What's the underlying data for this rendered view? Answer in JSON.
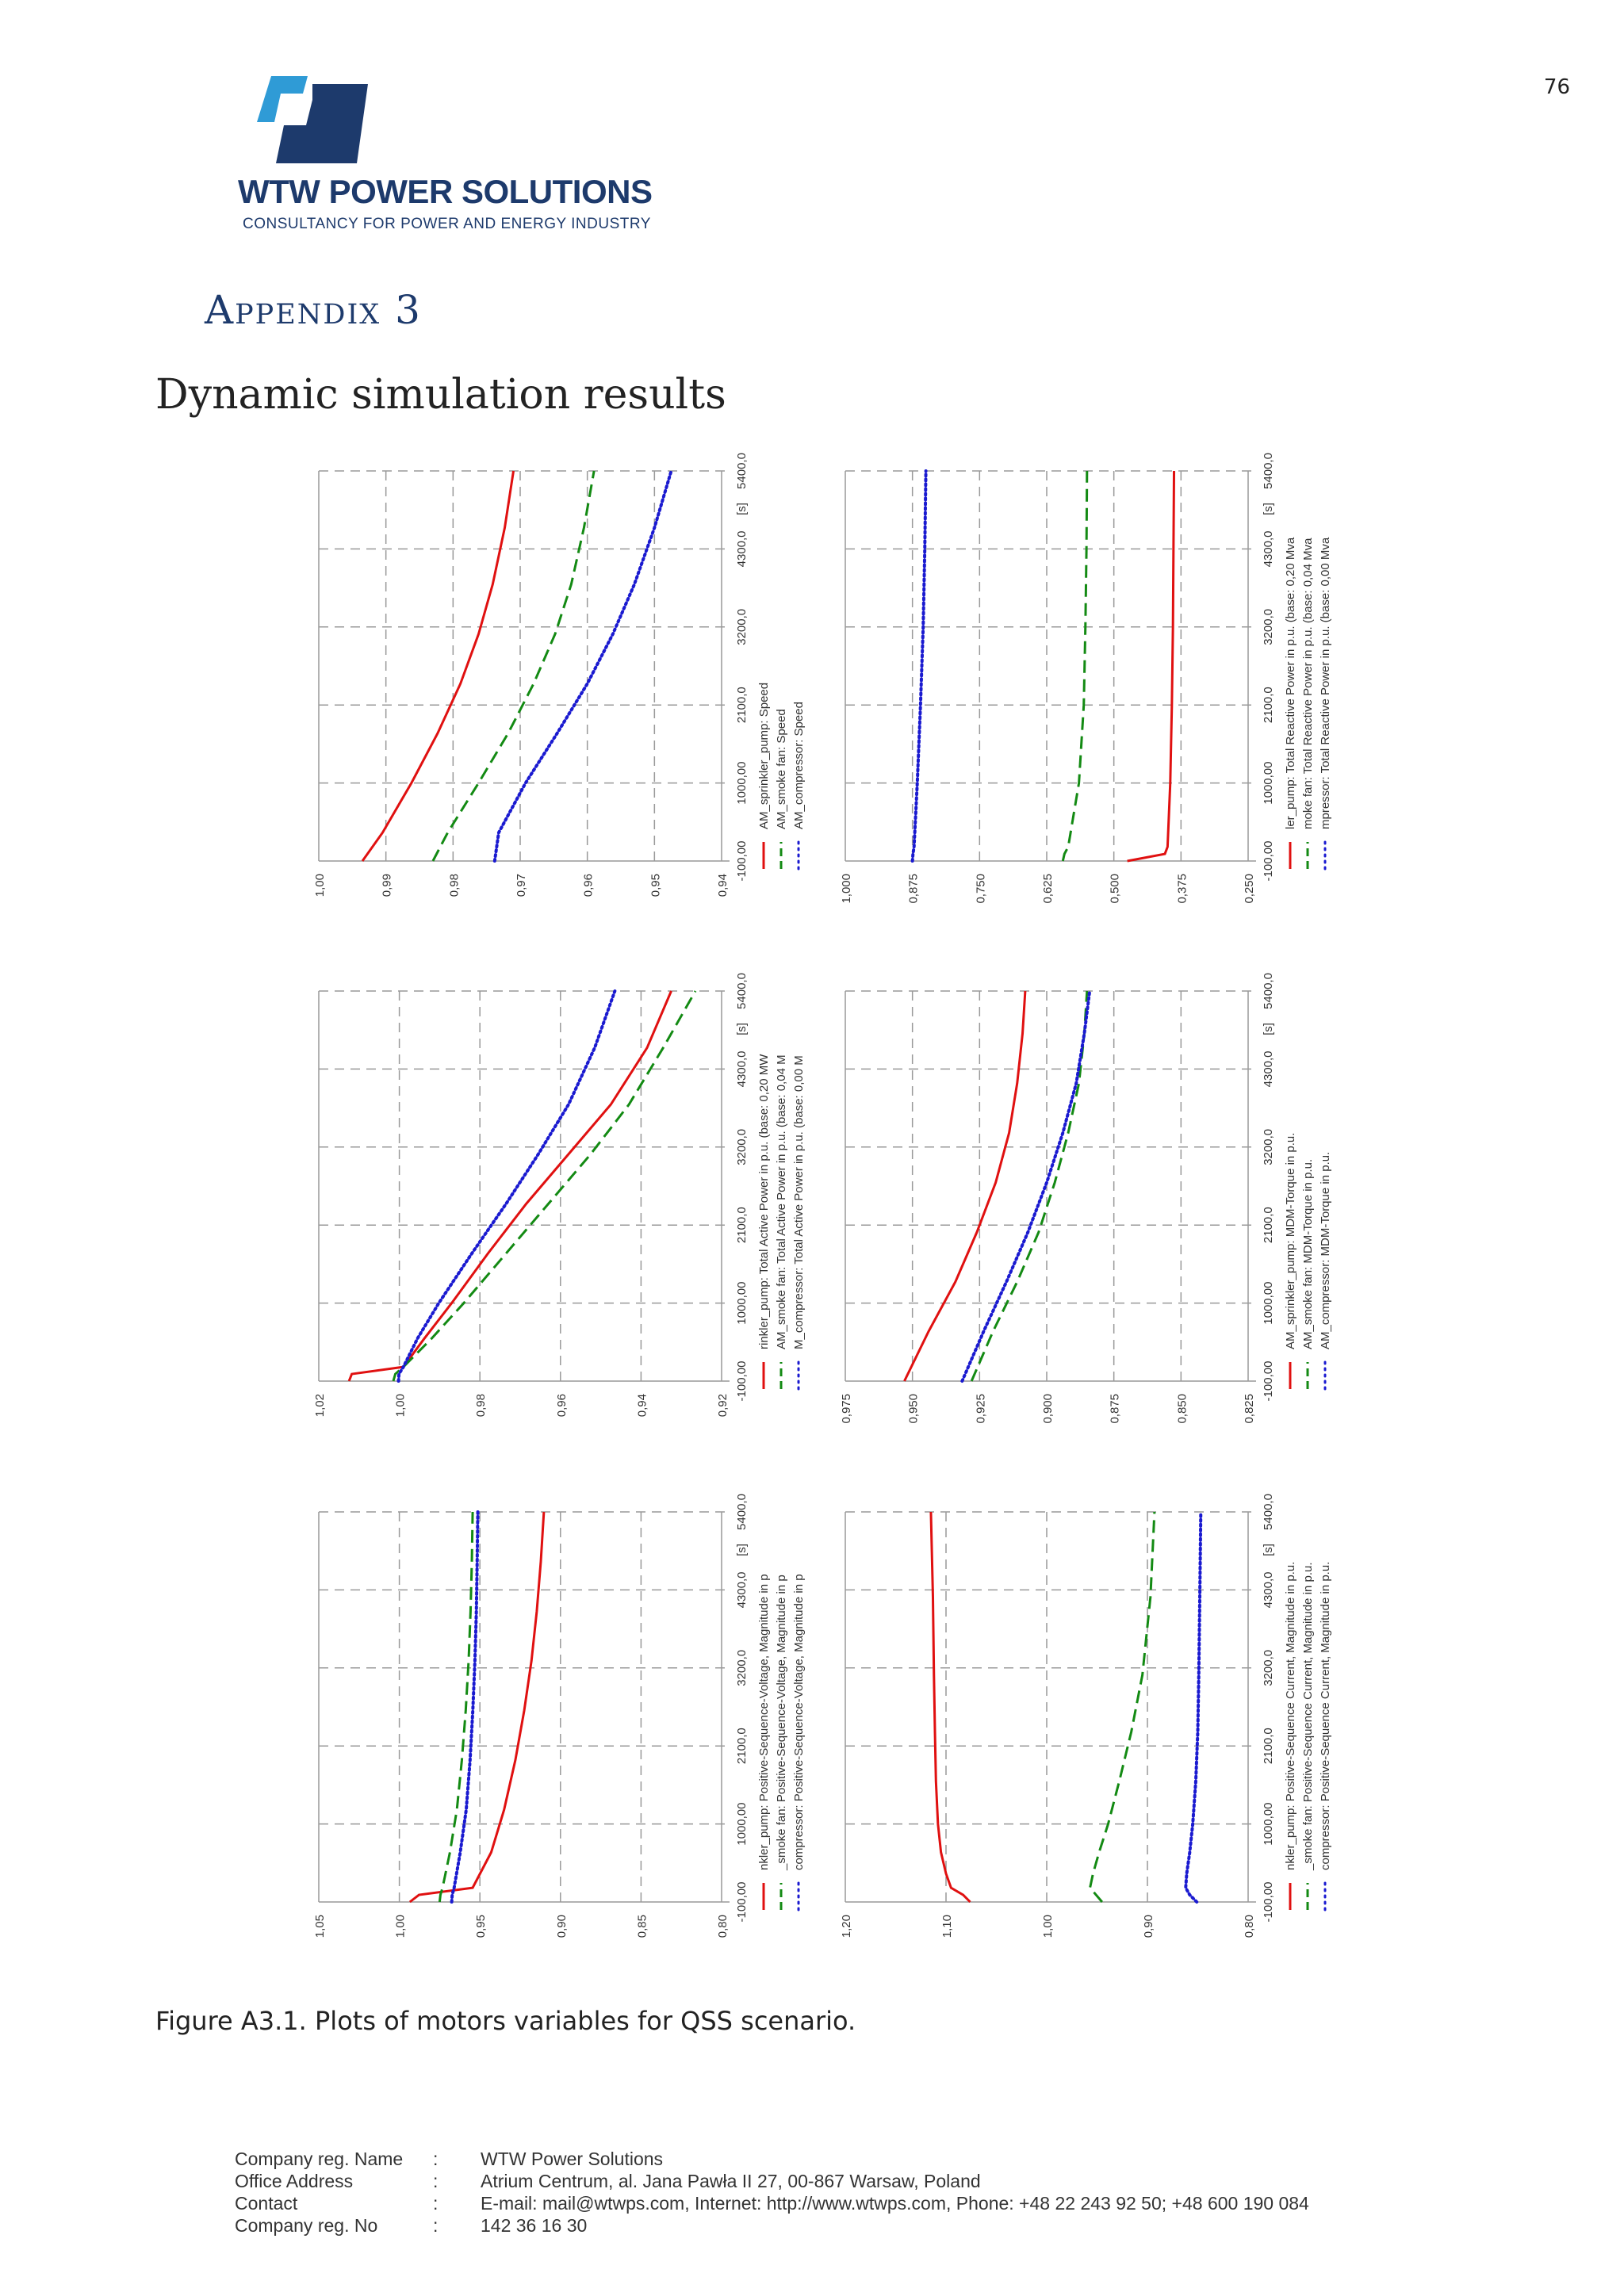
{
  "page_number": "76",
  "logo": {
    "brand": "WTW POWER SOLUTIONS",
    "tagline": "CONSULTANCY FOR POWER AND ENERGY INDUSTRY",
    "colors": {
      "dark": "#1d3a6c",
      "light": "#2f9bd6"
    }
  },
  "appendix_title": "Appendix 3",
  "section_title": "Dynamic simulation results",
  "figure_caption": "Figure A3.1. Plots of motors variables for QSS scenario.",
  "series_colors": {
    "sprinkler": "#e01010",
    "smoke": "#138a13",
    "compressor": "#1a1ad0"
  },
  "chart_data": [
    {
      "type": "line",
      "title": "Speed",
      "x_unit": "[s]",
      "x_ticks": [
        "-100,00",
        "1000,00",
        "2100,0",
        "3200,0",
        "4300,0",
        "5400,0"
      ],
      "xlim": [
        -100,
        5400
      ],
      "y_ticks": [
        "1,00",
        "0,99",
        "0,98",
        "0,97",
        "0,96",
        "0,95",
        "0,94"
      ],
      "ylim": [
        0.94,
        1.0
      ],
      "x": [
        -100,
        300,
        1000,
        1700,
        2400,
        3100,
        3800,
        4600,
        5400
      ],
      "series": [
        {
          "name": "AM_sprinkler_pump: Speed",
          "style": "solid",
          "values": [
            0.9935,
            0.9905,
            0.9862,
            0.9823,
            0.9789,
            0.9762,
            0.9741,
            0.9723,
            0.971
          ]
        },
        {
          "name": "AM_smoke fan: Speed",
          "style": "dashed",
          "values": [
            0.983,
            0.9808,
            0.9762,
            0.9718,
            0.968,
            0.9648,
            0.9624,
            0.9605,
            0.959
          ]
        },
        {
          "name": "AM_compressor: Speed",
          "style": "dotted",
          "values": [
            0.9738,
            0.9732,
            0.9692,
            0.9645,
            0.96,
            0.9562,
            0.953,
            0.95,
            0.9475
          ]
        }
      ]
    },
    {
      "type": "line",
      "title": "Total Reactive Power",
      "x_unit": "[s]",
      "x_ticks": [
        "-100,00",
        "1000,00",
        "2100,0",
        "3200,0",
        "4300,0",
        "5400,0"
      ],
      "xlim": [
        -100,
        5400
      ],
      "y_ticks": [
        "1,000",
        "0,875",
        "0,750",
        "0,625",
        "0,500",
        "0,375",
        "0,250"
      ],
      "ylim": [
        0.25,
        1.0
      ],
      "x": [
        -100,
        0,
        100,
        1000,
        2100,
        3200,
        4300,
        5400
      ],
      "series": [
        {
          "name": "ler_pump: Total Reactive Power in p.u. (base: 0,20 Mva",
          "style": "solid",
          "values": [
            0.475,
            0.405,
            0.4,
            0.395,
            0.392,
            0.39,
            0.389,
            0.388
          ]
        },
        {
          "name": "moke fan: Total Reactive Power in p.u. (base: 0,04 Mva",
          "style": "dashed",
          "values": [
            0.595,
            0.592,
            0.585,
            0.565,
            0.556,
            0.553,
            0.551,
            0.55
          ]
        },
        {
          "name": "mpressor: Total Reactive Power in p.u. (base: 0,00 Mva",
          "style": "dotted",
          "values": [
            0.875,
            0.874,
            0.872,
            0.866,
            0.86,
            0.855,
            0.852,
            0.85
          ]
        }
      ]
    },
    {
      "type": "line",
      "title": "Total Active Power",
      "x_unit": "[s]",
      "x_ticks": [
        "-100,00",
        "1000,00",
        "2100,0",
        "3200,0",
        "4300,0",
        "5400,0"
      ],
      "xlim": [
        -100,
        5400
      ],
      "y_ticks": [
        "1,02",
        "1,00",
        "0,98",
        "0,96",
        "0,94",
        "0,92"
      ],
      "ylim": [
        0.92,
        1.02
      ],
      "x": [
        -100,
        0,
        100,
        500,
        1000,
        1700,
        2400,
        3100,
        3800,
        4600,
        5400
      ],
      "series": [
        {
          "name": "rinkler_pump: Total Active Power in p.u. (base: 0,20 MW",
          "style": "solid",
          "values": [
            1.0125,
            1.0118,
            0.999,
            0.9938,
            0.987,
            0.978,
            0.9685,
            0.958,
            0.9475,
            0.9385,
            0.9325
          ]
        },
        {
          "name": "AM_smoke fan: Total Active Power in p.u. (base: 0,04 M",
          "style": "dashed",
          "values": [
            1.0015,
            1.001,
            0.999,
            0.992,
            0.984,
            0.9735,
            0.963,
            0.9525,
            0.943,
            0.9345,
            0.9265
          ]
        },
        {
          "name": "M_compressor: Total Active Power in p.u. (base: 0,00 M",
          "style": "dotted",
          "values": [
            1.0002,
            1.0001,
            0.999,
            0.9955,
            0.9902,
            0.982,
            0.9735,
            0.9655,
            0.958,
            0.9515,
            0.9465
          ]
        }
      ]
    },
    {
      "type": "line",
      "title": "MDM-Torque",
      "x_unit": "[s]",
      "x_ticks": [
        "-100,00",
        "1000,00",
        "2100,0",
        "3200,0",
        "4300,0",
        "5400,0"
      ],
      "xlim": [
        -100,
        5400
      ],
      "y_ticks": [
        "0,975",
        "0,950",
        "0,925",
        "0,900",
        "0,875",
        "0,850",
        "0,825"
      ],
      "ylim": [
        0.825,
        0.975
      ],
      "x": [
        -100,
        600,
        1300,
        2000,
        2700,
        3400,
        4100,
        4800,
        5400
      ],
      "series": [
        {
          "name": "AM_sprinkler_pump: MDM-Torque in p.u.",
          "style": "solid",
          "values": [
            0.953,
            0.944,
            0.934,
            0.926,
            0.919,
            0.914,
            0.911,
            0.909,
            0.908
          ]
        },
        {
          "name": "AM_smoke fan: MDM-Torque in p.u.",
          "style": "dashed",
          "values": [
            0.928,
            0.92,
            0.911,
            0.903,
            0.897,
            0.892,
            0.888,
            0.886,
            0.885
          ]
        },
        {
          "name": "AM_compressor: MDM-Torque in p.u.",
          "style": "dotted",
          "values": [
            0.9315,
            0.9235,
            0.915,
            0.907,
            0.9,
            0.894,
            0.889,
            0.886,
            0.884
          ]
        }
      ]
    },
    {
      "type": "line",
      "title": "Positive-Sequence-Voltage, Magnitude",
      "x_unit": "[s]",
      "x_ticks": [
        "-100,00",
        "1000,00",
        "2100,0",
        "3200,0",
        "4300,0",
        "5400,0"
      ],
      "xlim": [
        -100,
        5400
      ],
      "y_ticks": [
        "1,05",
        "1,00",
        "0,95",
        "0,90",
        "0,85",
        "0,80"
      ],
      "ylim": [
        0.8,
        1.05
      ],
      "x": [
        -100,
        0,
        100,
        600,
        1200,
        1900,
        2600,
        3300,
        4000,
        4700,
        5400
      ],
      "series": [
        {
          "name": "nkler_pump: Positive-Sequence-Voltage, Magnitude in p",
          "style": "solid",
          "values": [
            0.9935,
            0.9878,
            0.9545,
            0.943,
            0.935,
            0.928,
            0.9225,
            0.918,
            0.9147,
            0.9122,
            0.9103
          ]
        },
        {
          "name": "_smoke fan: Positive-Sequence-Voltage, Magnitude in p",
          "style": "dashed",
          "values": [
            0.975,
            0.9745,
            0.9732,
            0.9686,
            0.9643,
            0.9612,
            0.9588,
            0.957,
            0.9558,
            0.955,
            0.9545
          ]
        },
        {
          "name": "compressor: Positive-Sequence-Voltage, Magnitude in p",
          "style": "dotted",
          "values": [
            0.9675,
            0.9672,
            0.966,
            0.9622,
            0.9585,
            0.9561,
            0.9544,
            0.9531,
            0.9522,
            0.9517,
            0.9513
          ]
        }
      ]
    },
    {
      "type": "line",
      "title": "Positive-Sequence Current, Magnitude",
      "x_unit": "[s]",
      "x_ticks": [
        "-100,00",
        "1000,00",
        "2100,0",
        "3200,0",
        "4300,0",
        "5400,0"
      ],
      "xlim": [
        -100,
        5400
      ],
      "y_ticks": [
        "1,20",
        "1,10",
        "1,00",
        "0,90",
        "0,80"
      ],
      "ylim": [
        0.8,
        1.2
      ],
      "x": [
        -100,
        0,
        100,
        300,
        600,
        1000,
        1600,
        2300,
        3100,
        4200,
        5400
      ],
      "series": [
        {
          "name": "nkler_pump: Positive-Sequence Current, Magnitude in p.u.",
          "style": "solid",
          "values": [
            1.076,
            1.083,
            1.095,
            1.1,
            1.105,
            1.108,
            1.11,
            1.111,
            1.112,
            1.113,
            1.115
          ]
        },
        {
          "name": "_smoke fan: Positive-Sequence Current, Magnitude in p.u.",
          "style": "dashed",
          "values": [
            0.945,
            0.951,
            0.957,
            0.954,
            0.948,
            0.939,
            0.928,
            0.916,
            0.905,
            0.897,
            0.893
          ]
        },
        {
          "name": "compressor: Positive-Sequence Current, Magnitude in p.u.",
          "style": "dotted",
          "values": [
            0.851,
            0.858,
            0.862,
            0.861,
            0.858,
            0.855,
            0.852,
            0.85,
            0.849,
            0.848,
            0.847
          ]
        }
      ]
    }
  ],
  "footer": {
    "rows": [
      {
        "label": "Company reg. Name",
        "separator": ":",
        "value": "WTW Power Solutions"
      },
      {
        "label": "Office Address",
        "separator": ":",
        "value": "Atrium Centrum, al. Jana Pawła II 27, 00-867 Warsaw, Poland"
      },
      {
        "label": "Contact",
        "separator": ":",
        "value": "E-mail: mail@wtwps.com, Internet: http://www.wtwps.com, Phone: +48 22 243 92 50; +48 600 190 084"
      },
      {
        "label": "Company reg. No",
        "separator": ":",
        "value": "142 36 16 30"
      }
    ]
  }
}
